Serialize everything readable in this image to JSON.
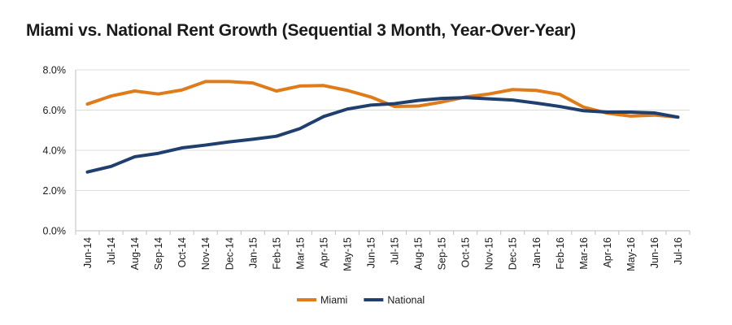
{
  "chart_data": {
    "type": "line",
    "title": "Miami vs. National Rent Growth (Sequential 3 Month, Year-Over-Year)",
    "xlabel": "",
    "ylabel": "",
    "ylim": [
      0,
      8
    ],
    "y_ticks": [
      "0.0%",
      "2.0%",
      "4.0%",
      "6.0%",
      "8.0%"
    ],
    "grid": true,
    "legend_position": "bottom-center",
    "categories": [
      "Jun-14",
      "Jul-14",
      "Aug-14",
      "Sep-14",
      "Oct-14",
      "Nov-14",
      "Dec-14",
      "Jan-15",
      "Feb-15",
      "Mar-15",
      "Apr-15",
      "May-15",
      "Jun-15",
      "Jul-15",
      "Aug-15",
      "Sep-15",
      "Oct-15",
      "Nov-15",
      "Dec-15",
      "Jan-16",
      "Feb-16",
      "Mar-16",
      "Apr-16",
      "May-16",
      "Jun-16",
      "Jul-16"
    ],
    "series": [
      {
        "name": "Miami",
        "color": "#e07b1a",
        "values": [
          6.3,
          6.7,
          6.95,
          6.8,
          7.0,
          7.42,
          7.42,
          7.35,
          6.95,
          7.2,
          7.22,
          6.98,
          6.65,
          6.18,
          6.2,
          6.4,
          6.65,
          6.8,
          7.02,
          6.98,
          6.78,
          6.15,
          5.85,
          5.7,
          5.75,
          5.65
        ]
      },
      {
        "name": "National",
        "color": "#1f3f6e",
        "values": [
          2.92,
          3.2,
          3.68,
          3.85,
          4.12,
          4.26,
          4.42,
          4.55,
          4.7,
          5.08,
          5.68,
          6.05,
          6.25,
          6.32,
          6.48,
          6.58,
          6.62,
          6.56,
          6.5,
          6.35,
          6.18,
          5.97,
          5.9,
          5.9,
          5.86,
          5.65
        ]
      }
    ]
  }
}
